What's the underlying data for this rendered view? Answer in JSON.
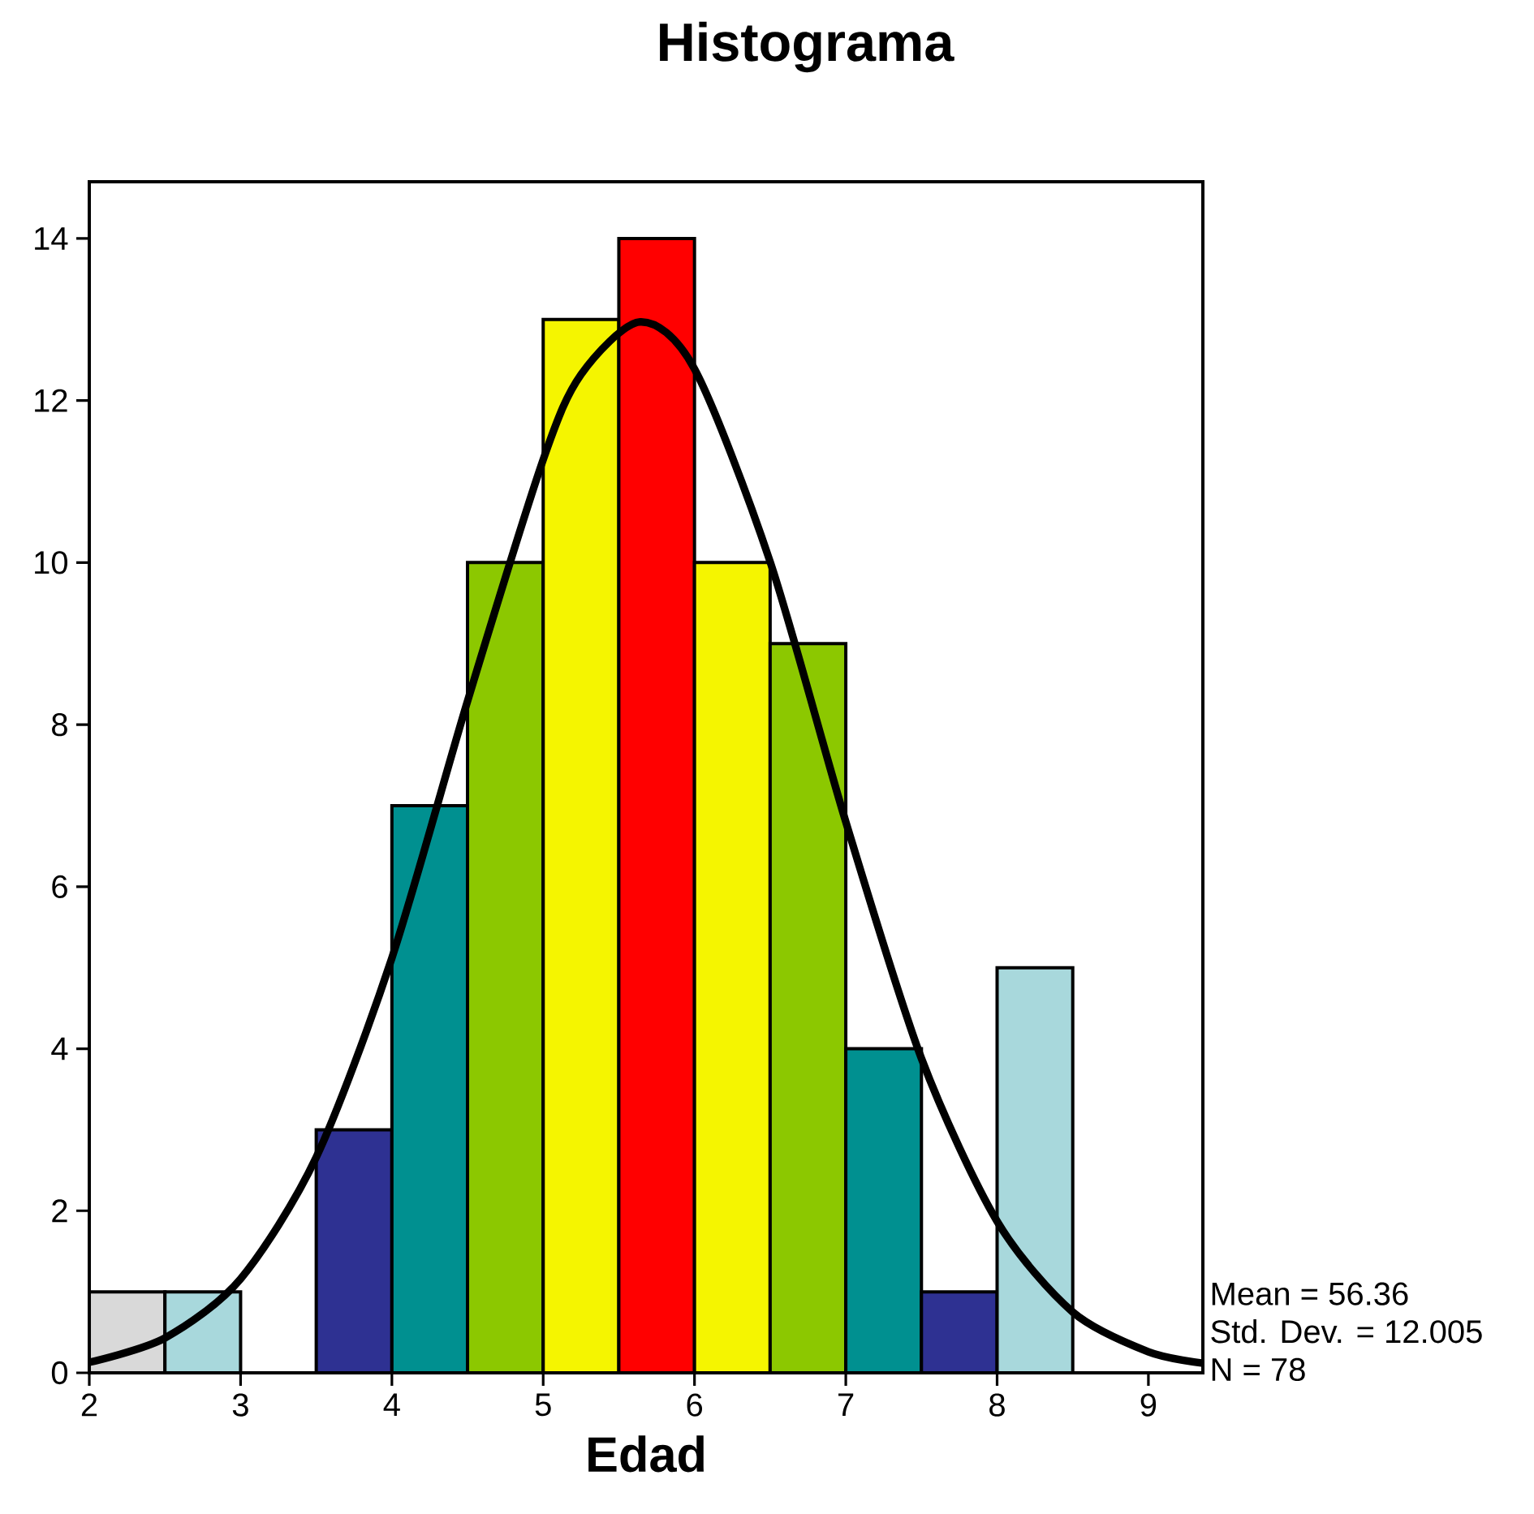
{
  "chart_data": {
    "type": "histogram",
    "title": "Histograma",
    "xlabel": "Edad",
    "bins": [
      2,
      2.5,
      3,
      3.5,
      4,
      4.5,
      5,
      5.5,
      6,
      6.5,
      7,
      7.5,
      8,
      8.5
    ],
    "values": [
      1,
      1,
      0,
      3,
      7,
      10,
      13,
      14,
      10,
      9,
      4,
      1,
      5
    ],
    "colors": [
      "#d9d9d9",
      "#a8d8dc",
      "#a8d8dc",
      "#2e3192",
      "#009090",
      "#8cc800",
      "#f5f500",
      "#ff0000",
      "#f5f500",
      "#8cc800",
      "#009090",
      "#2e3192",
      "#a8d8dc"
    ],
    "series": [
      {
        "type": "line",
        "color": "#000000",
        "x": [
          2,
          2.5,
          3,
          3.5,
          4,
          4.5,
          5,
          5.25,
          5.64,
          6,
          6.5,
          7,
          7.5,
          8,
          8.5,
          9,
          9.36
        ],
        "values": [
          0.13,
          0.43,
          1.16,
          2.66,
          5.12,
          8.29,
          11.27,
          12.32,
          12.97,
          12.39,
          10.01,
          6.8,
          3.88,
          1.87,
          0.75,
          0.26,
          0.12
        ]
      }
    ],
    "xlim": [
      2,
      9.36
    ],
    "ylim": [
      0,
      14.7
    ],
    "xticks": [
      2,
      3,
      4,
      5,
      6,
      7,
      8,
      9
    ],
    "yticks": [
      0,
      2,
      4,
      6,
      8,
      10,
      12,
      14
    ],
    "grid": false,
    "annotations": [
      "Mean = 56.36",
      "Std. Dev. = 12.005",
      "N = 78"
    ]
  }
}
